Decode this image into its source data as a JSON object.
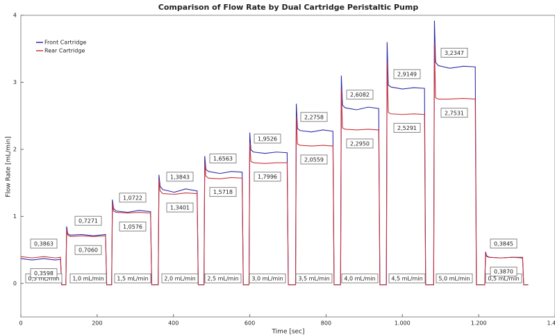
{
  "chart_data": {
    "type": "line",
    "title": "Comparison of Flow Rate by Dual Cartridge Peristaltic Pump",
    "xlabel": "Time [sec]",
    "ylabel": "Flow Rate [mL/min]",
    "xlim": [
      0,
      1400
    ],
    "ylim": [
      -0.5,
      4
    ],
    "xticks": [
      0,
      200,
      400,
      600,
      800,
      {
        "value": 1000,
        "label": "1.000"
      },
      {
        "value": 1200,
        "label": "1.200"
      },
      {
        "value": 1400,
        "label": "1.400"
      }
    ],
    "yticks": [
      0,
      1,
      2,
      3,
      4
    ],
    "grid": false,
    "legend": "upper left",
    "x": [
      0,
      30,
      60,
      90,
      104,
      107,
      118,
      120,
      123,
      130,
      160,
      190,
      222,
      225,
      238,
      240,
      243,
      250,
      280,
      310,
      340,
      343,
      360,
      362,
      365,
      372,
      402,
      432,
      462,
      465,
      480,
      482,
      485,
      492,
      522,
      552,
      580,
      583,
      598,
      600,
      603,
      610,
      640,
      670,
      698,
      701,
      720,
      722,
      725,
      732,
      762,
      792,
      818,
      821,
      838,
      840,
      843,
      850,
      880,
      910,
      938,
      941,
      958,
      960,
      963,
      970,
      1000,
      1030,
      1058,
      1061,
      1082,
      1084,
      1087,
      1094,
      1124,
      1160,
      1191,
      1194,
      1216,
      1218,
      1221,
      1228,
      1258,
      1288,
      1315,
      1318,
      1330
    ],
    "series": [
      {
        "name": "Front Cartridge",
        "color": "#2b2ba8",
        "values": [
          0.37,
          0.35,
          0.37,
          0.35,
          0.36,
          -0.02,
          -0.02,
          0.85,
          0.74,
          0.72,
          0.73,
          0.71,
          0.73,
          -0.02,
          -0.02,
          1.25,
          1.12,
          1.08,
          1.06,
          1.09,
          1.07,
          -0.02,
          -0.02,
          1.62,
          1.45,
          1.4,
          1.36,
          1.41,
          1.38,
          -0.02,
          -0.02,
          1.9,
          1.7,
          1.67,
          1.64,
          1.67,
          1.66,
          -0.02,
          -0.02,
          2.25,
          1.99,
          1.96,
          1.94,
          1.96,
          1.95,
          -0.02,
          -0.02,
          2.68,
          2.31,
          2.28,
          2.26,
          2.29,
          2.27,
          -0.02,
          -0.02,
          3.1,
          2.66,
          2.62,
          2.59,
          2.63,
          2.61,
          -0.02,
          -0.02,
          3.6,
          2.96,
          2.93,
          2.9,
          2.92,
          2.91,
          -0.02,
          -0.02,
          3.92,
          3.3,
          3.25,
          3.21,
          3.24,
          3.23,
          -0.02,
          -0.02,
          0.47,
          0.41,
          0.39,
          0.38,
          0.39,
          0.38,
          -0.02,
          -0.02
        ]
      },
      {
        "name": "Rear Cartridge",
        "color": "#c8323c",
        "values": [
          0.4,
          0.38,
          0.4,
          0.38,
          0.39,
          -0.02,
          -0.02,
          0.8,
          0.72,
          0.7,
          0.71,
          0.7,
          0.71,
          -0.02,
          -0.02,
          1.2,
          1.08,
          1.06,
          1.05,
          1.06,
          1.05,
          -0.02,
          -0.02,
          1.55,
          1.38,
          1.34,
          1.33,
          1.35,
          1.34,
          -0.02,
          -0.02,
          1.8,
          1.6,
          1.57,
          1.56,
          1.58,
          1.57,
          -0.02,
          -0.02,
          2.1,
          1.82,
          1.8,
          1.79,
          1.8,
          1.8,
          -0.02,
          -0.02,
          2.5,
          2.08,
          2.06,
          2.05,
          2.06,
          2.05,
          -0.02,
          -0.02,
          2.9,
          2.32,
          2.3,
          2.29,
          2.3,
          2.29,
          -0.02,
          -0.02,
          3.3,
          2.55,
          2.53,
          2.52,
          2.53,
          2.52,
          -0.02,
          -0.02,
          3.6,
          2.77,
          2.75,
          2.75,
          2.76,
          2.75,
          -0.02,
          -0.02,
          0.45,
          0.4,
          0.39,
          0.38,
          0.39,
          0.39,
          -0.02,
          -0.02
        ]
      }
    ],
    "plateau_means": [
      {
        "series": 0,
        "values": [
          0.3598,
          0.706,
          1.0722,
          1.3843,
          1.6563,
          1.9526,
          2.2758,
          2.6082,
          2.9149,
          3.2347,
          0.3845
        ],
        "value_labels": [
          "0,3598",
          "0,7060",
          "1,0722",
          "1,3843",
          "1,6563",
          "1,9526",
          "2,2758",
          "2,6082",
          "2,9149",
          "3,2347",
          "0,3845"
        ]
      },
      {
        "series": 1,
        "values": [
          0.3863,
          0.7271,
          1.0576,
          1.3401,
          1.5718,
          1.7996,
          2.0559,
          2.295,
          2.5291,
          2.7531,
          0.387
        ],
        "value_labels": [
          "0,3863",
          "0,7271",
          "1,0576",
          "1,3401",
          "1,5718",
          "1,7996",
          "2,0559",
          "2,2950",
          "2,5291",
          "2,7531",
          "0,3870"
        ]
      }
    ],
    "step_labels": [
      "0,5 mL/min",
      "1,0 mL/min",
      "1,5 mL/min",
      "2,0 mL/min",
      "2,5 mL/min",
      "3,0 mL/min",
      "3,5 mL/min",
      "4,0 mL/min",
      "4,5 mL/min",
      "5,0 mL/min",
      "0,5 mL/min"
    ]
  }
}
